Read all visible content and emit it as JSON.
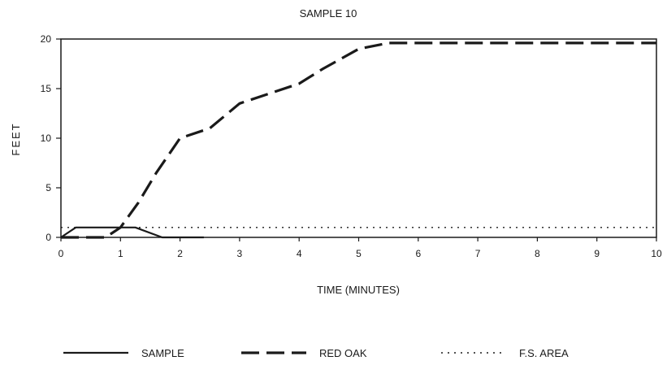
{
  "chart_data": {
    "type": "line",
    "title": "SAMPLE 10",
    "xlabel": "TIME (MINUTES)",
    "ylabel": "FEET",
    "xlim": [
      0,
      10
    ],
    "ylim": [
      0,
      20
    ],
    "x_ticks": [
      "0",
      "1",
      "2",
      "3",
      "4",
      "5",
      "6",
      "7",
      "8",
      "9",
      "10"
    ],
    "y_ticks": [
      "0",
      "5",
      "10",
      "15",
      "20"
    ],
    "grid": false,
    "legend_position": "bottom",
    "series": [
      {
        "name": "SAMPLE",
        "style": "solid",
        "color": "#1a1a1a",
        "x": [
          0,
          0.25,
          1,
          1.25,
          1.7,
          2.4
        ],
        "y": [
          0,
          1,
          1,
          1,
          0,
          0
        ]
      },
      {
        "name": "RED OAK",
        "style": "dashed",
        "color": "#1a1a1a",
        "x": [
          0,
          0.75,
          1,
          1.3,
          1.6,
          2,
          2.5,
          3,
          3.5,
          4,
          4.4,
          5,
          5.5,
          6,
          7,
          8,
          9,
          10
        ],
        "y": [
          0,
          0,
          1,
          3.5,
          6.5,
          10,
          11,
          13.5,
          14.5,
          15.5,
          17,
          19,
          19.6,
          19.6,
          19.6,
          19.6,
          19.6,
          19.6
        ]
      },
      {
        "name": "F.S. AREA",
        "style": "dotted",
        "color": "#1a1a1a",
        "x": [
          0,
          1,
          2,
          3,
          4,
          5,
          6,
          7,
          8,
          9,
          10
        ],
        "y": [
          1,
          1,
          1,
          1,
          1,
          1,
          1,
          1,
          1,
          1,
          1
        ]
      }
    ]
  }
}
